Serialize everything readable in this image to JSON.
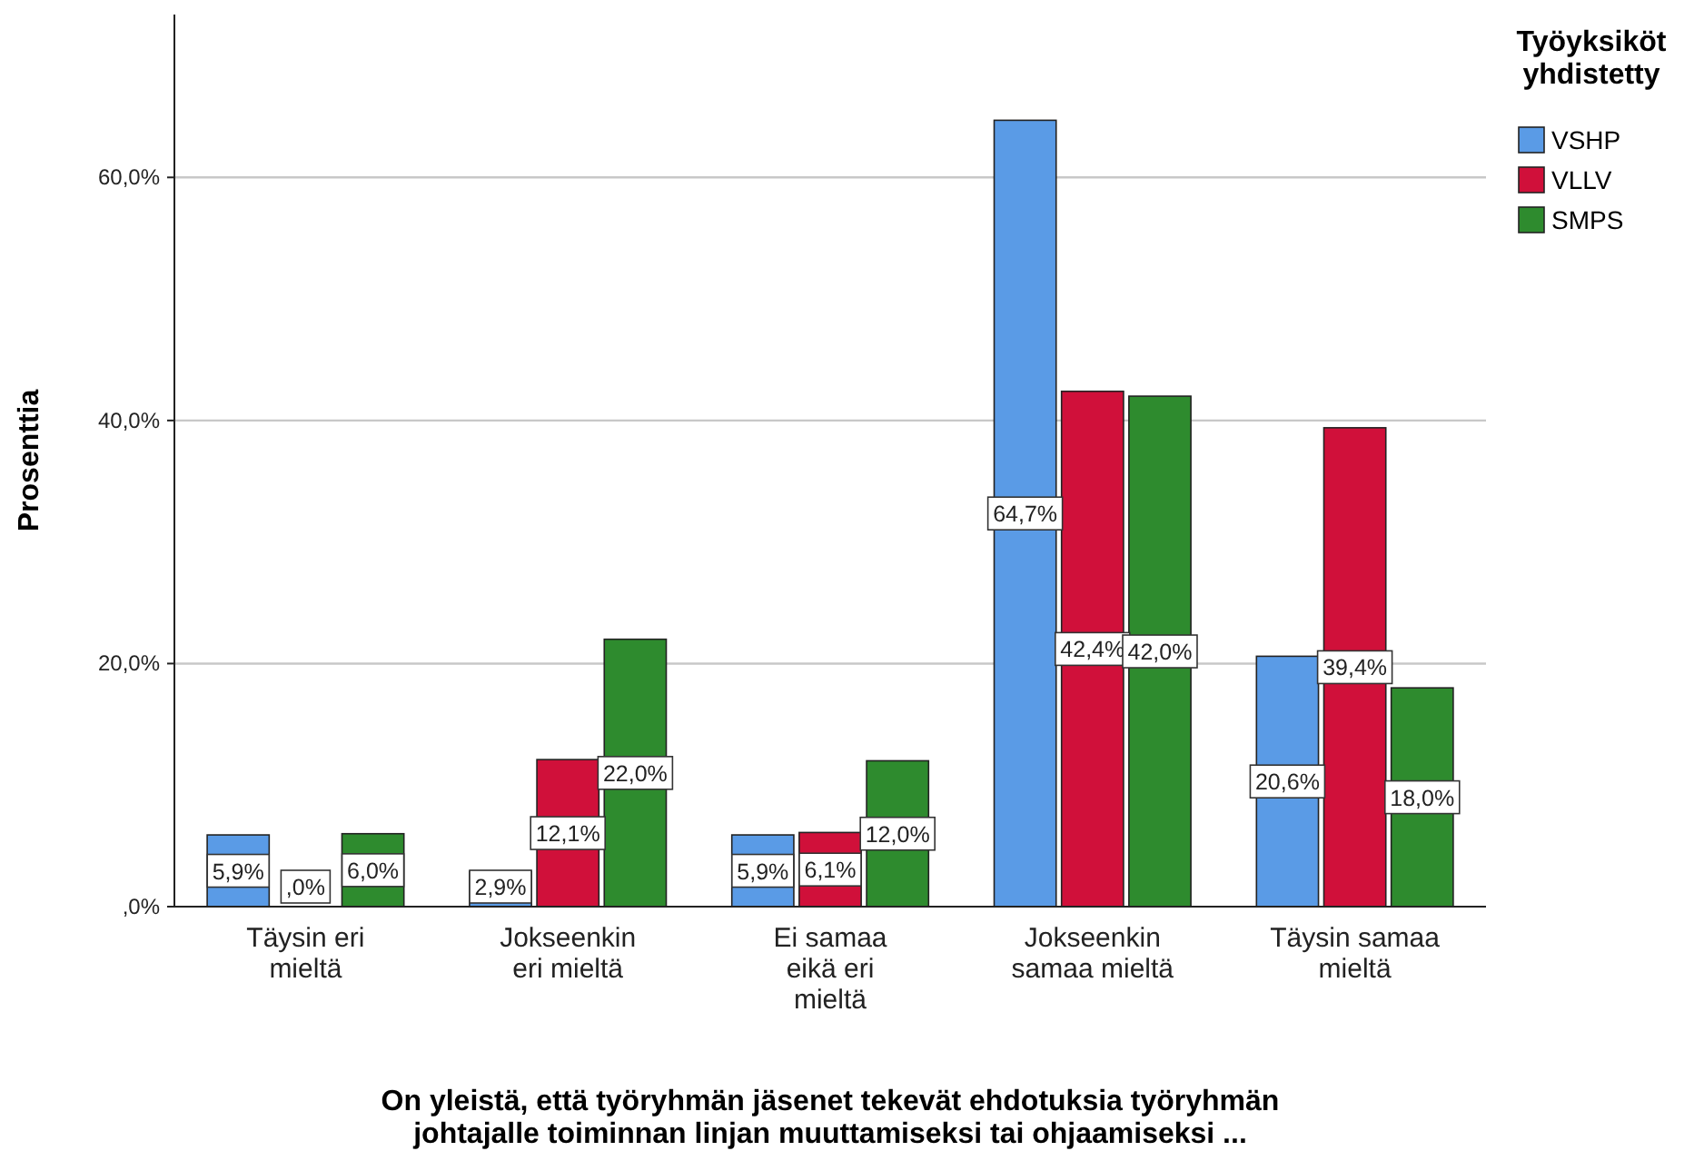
{
  "chart_data": {
    "type": "bar",
    "xlabel": "On yleistä, että työryhmän jäsenet tekevät ehdotuksia työryhmän johtajalle toiminnan linjan muuttamiseksi tai ohjaamiseksi ...",
    "ylabel": "Prosenttia",
    "legend_title": "Työyksiköt yhdistetty",
    "categories": [
      "Täysin eri mieltä",
      "Jokseenkin eri mieltä",
      "Ei samaa eikä eri mieltä",
      "Jokseenkin samaa mieltä",
      "Täysin samaa mieltä"
    ],
    "series": [
      {
        "name": "VSHP",
        "color": "#5a9be6",
        "values": [
          5.9,
          2.9,
          5.9,
          64.7,
          20.6
        ],
        "value_labels": [
          "5,9%",
          "2,9%",
          "5,9%",
          "64,7%",
          "20,6%"
        ]
      },
      {
        "name": "VLLV",
        "color": "#d0103a",
        "values": [
          0,
          12.1,
          6.1,
          42.4,
          39.4
        ],
        "value_labels": [
          ",0%",
          "12,1%",
          "6,1%",
          "42,4%",
          "39,4%"
        ]
      },
      {
        "name": "SMPS",
        "color": "#2e8b2e",
        "values": [
          6.0,
          22.0,
          12.0,
          42.0,
          18.0
        ],
        "value_labels": [
          "6,0%",
          "22,0%",
          "12,0%",
          "42,0%",
          "18,0%"
        ]
      }
    ],
    "ylim": [
      0,
      73.4
    ],
    "yticks": [
      {
        "value": 0,
        "label": ",0%"
      },
      {
        "value": 20,
        "label": "20,0%"
      },
      {
        "value": 40,
        "label": "40,0%"
      },
      {
        "value": 60,
        "label": "60,0%"
      }
    ],
    "grid": "y",
    "legend": "top right"
  }
}
